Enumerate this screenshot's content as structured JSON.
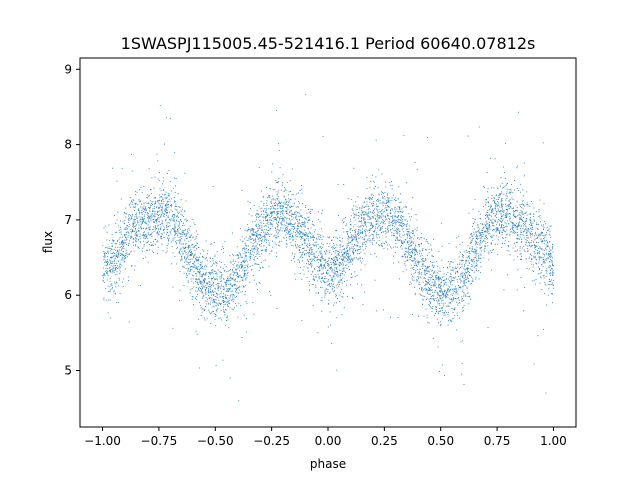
{
  "chart_data": {
    "type": "scatter",
    "title": "1SWASPJ115005.45-521416.1 Period 60640.07812s",
    "xlabel": "phase",
    "ylabel": "flux",
    "xlim": [
      -1.1,
      1.1
    ],
    "ylim": [
      4.25,
      9.15
    ],
    "xticks": [
      -1.0,
      -0.75,
      -0.5,
      -0.25,
      0.0,
      0.25,
      0.5,
      0.75,
      1.0
    ],
    "xtick_labels": [
      "−1.00",
      "−0.75",
      "−0.50",
      "−0.25",
      "0.00",
      "0.25",
      "0.50",
      "0.75",
      "1.00"
    ],
    "yticks": [
      5,
      6,
      7,
      8,
      9
    ],
    "ytick_labels": [
      "5",
      "6",
      "7",
      "8",
      "9"
    ],
    "grid": false,
    "marker_color": "#1f77b4",
    "series": [
      {
        "x": [
          -1.0,
          -0.95,
          -0.9,
          -0.85,
          -0.8,
          -0.75,
          -0.7,
          -0.65,
          -0.6,
          -0.55,
          -0.5,
          -0.45,
          -0.4,
          -0.35,
          -0.3,
          -0.25,
          -0.2,
          -0.15,
          -0.1,
          -0.05,
          0.0,
          0.05,
          0.1,
          0.15,
          0.2,
          0.25,
          0.3,
          0.35,
          0.4,
          0.45,
          0.5,
          0.55,
          0.6,
          0.65,
          0.7,
          0.75,
          0.8,
          0.85,
          0.9,
          0.95,
          1.0
        ],
        "y": [
          6.4,
          6.45,
          6.7,
          6.95,
          7.0,
          7.05,
          7.05,
          6.8,
          6.45,
          6.15,
          6.05,
          6.05,
          6.25,
          6.6,
          6.85,
          7.05,
          7.05,
          6.95,
          6.75,
          6.5,
          6.35,
          6.4,
          6.65,
          6.9,
          7.0,
          7.05,
          7.0,
          6.75,
          6.45,
          6.15,
          6.05,
          6.05,
          6.2,
          6.55,
          6.9,
          7.05,
          7.1,
          6.95,
          6.75,
          6.55,
          6.4
        ]
      }
    ]
  }
}
